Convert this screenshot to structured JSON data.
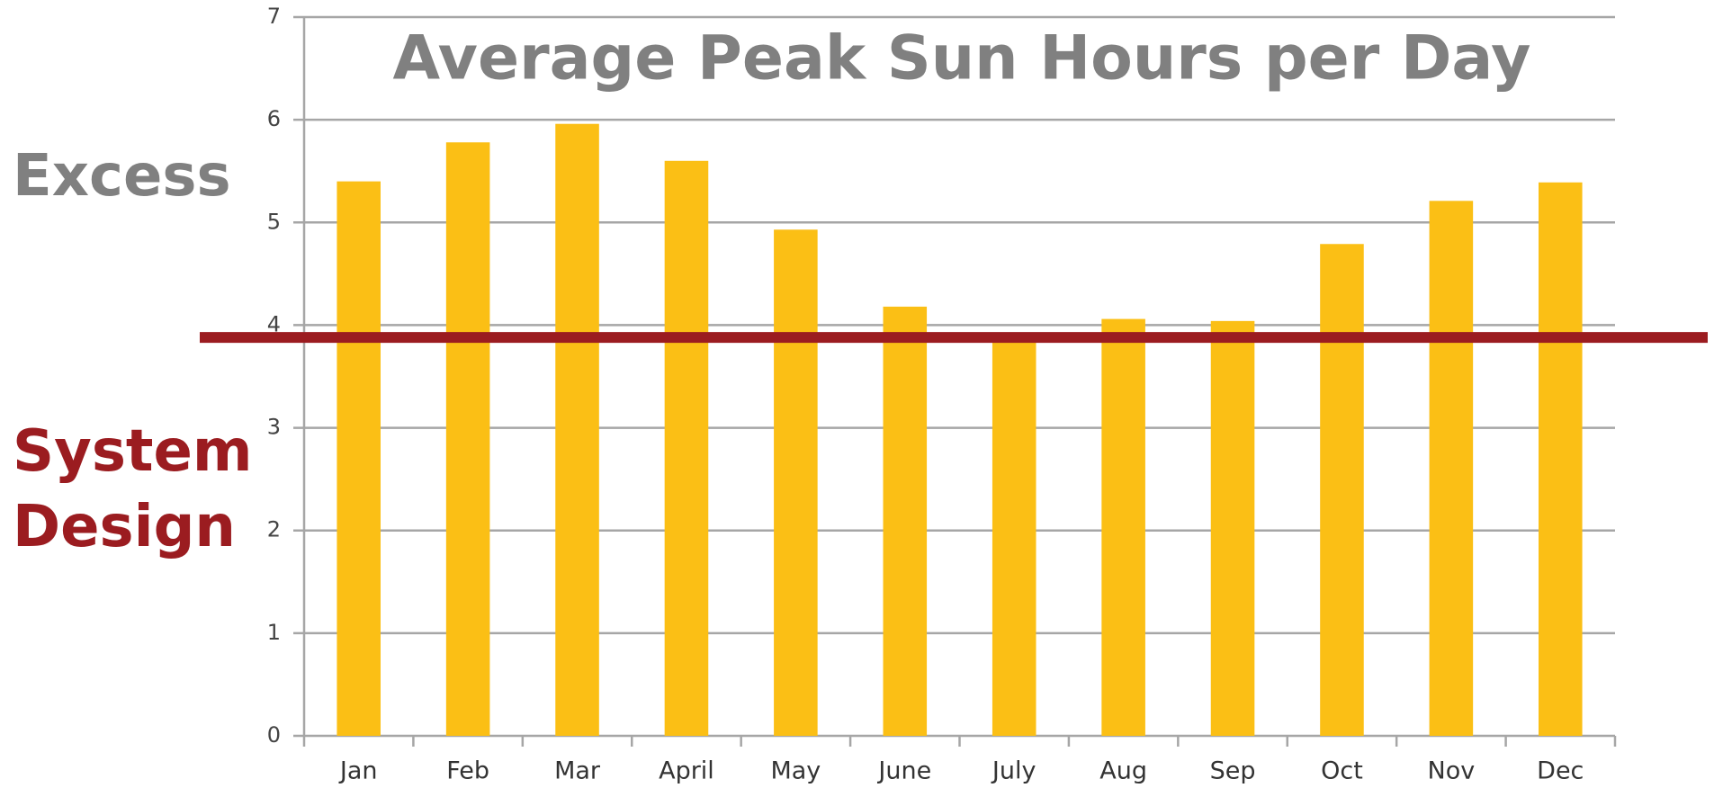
{
  "chart_data": {
    "type": "bar",
    "title": "Average Peak Sun Hours per Day",
    "categories": [
      "Jan",
      "Feb",
      "Mar",
      "April",
      "May",
      "June",
      "July",
      "Aug",
      "Sep",
      "Oct",
      "Nov",
      "Dec"
    ],
    "values": [
      5.4,
      5.78,
      5.96,
      5.6,
      4.93,
      4.18,
      3.9,
      4.06,
      4.04,
      4.79,
      5.21,
      5.39
    ],
    "color": "#fbbf15",
    "ylim": [
      0,
      7
    ],
    "yticks": [
      0,
      1,
      2,
      3,
      4,
      5,
      6,
      7
    ],
    "grid": true,
    "reference_line": {
      "value": 3.88,
      "color": "#9b1c20"
    },
    "annotations": [
      {
        "text": "Excess",
        "color": "#808080"
      },
      {
        "text": "System Design",
        "color": "#9b1c20"
      }
    ]
  }
}
